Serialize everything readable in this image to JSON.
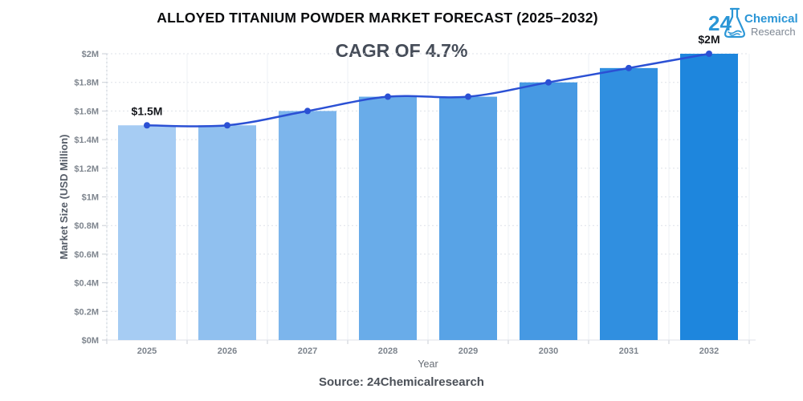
{
  "header": {
    "title": "ALLOYED TITANIUM POWDER MARKET FORECAST (2025–2032)",
    "subtitle": "CAGR OF 4.7%"
  },
  "logo": {
    "number": "24",
    "word1": "Chemical",
    "word2": "Research",
    "blue": "#2B96D6",
    "gray": "#7E8793"
  },
  "chart_data": {
    "type": "combo-bar-line",
    "title": "ALLOYED TITANIUM POWDER MARKET FORECAST (2025–2032)",
    "subtitle": "CAGR OF 4.7%",
    "categories": [
      "2025",
      "2026",
      "2027",
      "2028",
      "2029",
      "2030",
      "2031",
      "2032"
    ],
    "series": [
      {
        "name": "Market Size bars",
        "type": "bar",
        "values": [
          1.5,
          1.5,
          1.6,
          1.7,
          1.7,
          1.8,
          1.9,
          2.0
        ]
      },
      {
        "name": "Market Size trend",
        "type": "line",
        "values": [
          1.5,
          1.5,
          1.6,
          1.7,
          1.7,
          1.8,
          1.9,
          2.0
        ]
      }
    ],
    "bar_colors": [
      "#A6CCF3",
      "#90C0EF",
      "#7CB5EC",
      "#69ACE9",
      "#58A3E6",
      "#4699E3",
      "#308FE0",
      "#1E86DD"
    ],
    "line_color": "#2B50D4",
    "xlabel": "Year",
    "ylabel": "Market Size (USD Million)",
    "ylim": [
      0,
      2
    ],
    "grid": true,
    "legend": false,
    "yticks": [
      {
        "v": 0.0,
        "label": "$0M"
      },
      {
        "v": 0.2,
        "label": "$0.2M"
      },
      {
        "v": 0.4,
        "label": "$0.4M"
      },
      {
        "v": 0.6,
        "label": "$0.6M"
      },
      {
        "v": 0.8,
        "label": "$0.8M"
      },
      {
        "v": 1.0,
        "label": "$1M"
      },
      {
        "v": 1.2,
        "label": "$1.2M"
      },
      {
        "v": 1.4,
        "label": "$1.4M"
      },
      {
        "v": 1.6,
        "label": "$1.6M"
      },
      {
        "v": 1.8,
        "label": "$1.8M"
      },
      {
        "v": 2.0,
        "label": "$2M"
      }
    ],
    "annotations": [
      {
        "index": 0,
        "label": "$1.5M"
      },
      {
        "index": 7,
        "label": "$2M"
      }
    ]
  },
  "footer": {
    "source": "Source: 24Chemicalresearch"
  }
}
